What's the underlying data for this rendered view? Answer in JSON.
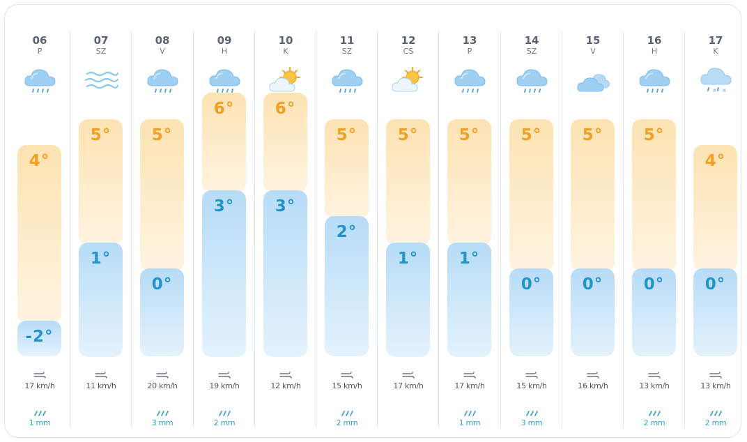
{
  "days": [
    {
      "day": "06",
      "weekday": "P",
      "icon": "rain-icon",
      "high": "4°",
      "high_value": 4,
      "low": "-2°",
      "low_value": -2,
      "wind": "17 km/h",
      "rain": "1 mm"
    },
    {
      "day": "07",
      "weekday": "SZ",
      "icon": "wind-lines-icon",
      "high": "5°",
      "high_value": 5,
      "low": "1°",
      "low_value": 1,
      "wind": "11 km/h",
      "rain": ""
    },
    {
      "day": "08",
      "weekday": "V",
      "icon": "rain-icon",
      "high": "5°",
      "high_value": 5,
      "low": "0°",
      "low_value": 0,
      "wind": "20 km/h",
      "rain": "3 mm"
    },
    {
      "day": "09",
      "weekday": "H",
      "icon": "rain-icon",
      "high": "6°",
      "high_value": 6,
      "low": "3°",
      "low_value": 3,
      "wind": "19 km/h",
      "rain": "2 mm"
    },
    {
      "day": "10",
      "weekday": "K",
      "icon": "partly-sunny-icon",
      "high": "6°",
      "high_value": 6,
      "low": "3°",
      "low_value": 3,
      "wind": "12 km/h",
      "rain": ""
    },
    {
      "day": "11",
      "weekday": "SZ",
      "icon": "rain-icon",
      "high": "5°",
      "high_value": 5,
      "low": "2°",
      "low_value": 2,
      "wind": "15 km/h",
      "rain": "2 mm"
    },
    {
      "day": "12",
      "weekday": "CS",
      "icon": "partly-sunny-icon",
      "high": "5°",
      "high_value": 5,
      "low": "1°",
      "low_value": 1,
      "wind": "17 km/h",
      "rain": ""
    },
    {
      "day": "13",
      "weekday": "P",
      "icon": "rain-icon",
      "high": "5°",
      "high_value": 5,
      "low": "1°",
      "low_value": 1,
      "wind": "17 km/h",
      "rain": "1 mm"
    },
    {
      "day": "14",
      "weekday": "SZ",
      "icon": "rain-icon",
      "high": "5°",
      "high_value": 5,
      "low": "0°",
      "low_value": 0,
      "wind": "15 km/h",
      "rain": "3 mm"
    },
    {
      "day": "15",
      "weekday": "V",
      "icon": "cloudy-icon",
      "high": "5°",
      "high_value": 5,
      "low": "0°",
      "low_value": 0,
      "wind": "16 km/h",
      "rain": ""
    },
    {
      "day": "16",
      "weekday": "H",
      "icon": "rain-icon",
      "high": "5°",
      "high_value": 5,
      "low": "0°",
      "low_value": 0,
      "wind": "13 km/h",
      "rain": "2 mm"
    },
    {
      "day": "17",
      "weekday": "K",
      "icon": "sleet-icon",
      "high": "4°",
      "high_value": 4,
      "low": "0°",
      "low_value": 0,
      "wind": "13 km/h",
      "rain": "2 mm"
    }
  ],
  "colors": {
    "high_text": "#f2a023",
    "low_text": "#2493cc",
    "rain_text": "#2f9ed6",
    "high_bar": "#fde3b3",
    "low_bar": "#b7dcf7",
    "divider": "#dbe7f1"
  }
}
